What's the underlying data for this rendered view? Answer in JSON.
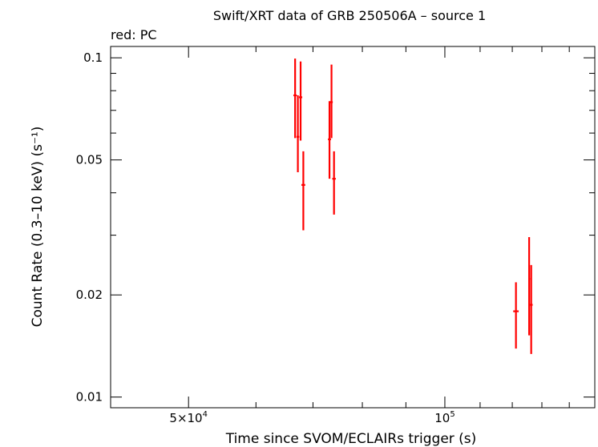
{
  "chart_data": {
    "type": "scatter",
    "title": "Swift/XRT data of GRB 250506A – source 1",
    "subtitle": "red: PC",
    "xlabel": "Time since SVOM/ECLAIRs trigger (s)",
    "ylabel": "Count Rate (0.3–10 keV) (s⁻¹)",
    "xscale": "log",
    "yscale": "log",
    "xlim": [
      40500,
      150000
    ],
    "ylim": [
      0.0093,
      0.108
    ],
    "x_tick_labels": [
      {
        "value": 50000,
        "base": "5×10",
        "exp": "4"
      },
      {
        "value": 100000,
        "base": "10",
        "exp": "5"
      }
    ],
    "y_tick_labels": [
      {
        "value": 0.1,
        "label": "0.1"
      },
      {
        "value": 0.05,
        "label": "0.05"
      },
      {
        "value": 0.02,
        "label": "0.02"
      },
      {
        "value": 0.01,
        "label": "0.01"
      }
    ],
    "series_color": "#ff0000",
    "points": [
      {
        "x": 66700,
        "xerr": [
          300,
          300
        ],
        "y": 0.0775,
        "ylo": 0.058,
        "yhi": 0.0995
      },
      {
        "x": 67200,
        "xerr": [
          250,
          250
        ],
        "y": 0.0585,
        "ylo": 0.046,
        "yhi": 0.0775
      },
      {
        "x": 67700,
        "xerr": [
          300,
          300
        ],
        "y": 0.0765,
        "ylo": 0.057,
        "yhi": 0.0975
      },
      {
        "x": 68200,
        "xerr": [
          350,
          350
        ],
        "y": 0.0422,
        "ylo": 0.031,
        "yhi": 0.053
      },
      {
        "x": 73200,
        "xerr": [
          300,
          300
        ],
        "y": 0.0575,
        "ylo": 0.044,
        "yhi": 0.0745
      },
      {
        "x": 73600,
        "xerr": [
          250,
          250
        ],
        "y": 0.074,
        "ylo": 0.058,
        "yhi": 0.0955
      },
      {
        "x": 74100,
        "xerr": [
          350,
          350
        ],
        "y": 0.044,
        "ylo": 0.0345,
        "yhi": 0.053
      },
      {
        "x": 121200,
        "xerr": [
          900,
          900
        ],
        "y": 0.0179,
        "ylo": 0.0139,
        "yhi": 0.0218
      },
      {
        "x": 125600,
        "xerr": [
          300,
          300
        ],
        "y": 0.0223,
        "ylo": 0.0152,
        "yhi": 0.0296
      },
      {
        "x": 126300,
        "xerr": [
          500,
          500
        ],
        "y": 0.0187,
        "ylo": 0.0134,
        "yhi": 0.0245
      }
    ]
  }
}
